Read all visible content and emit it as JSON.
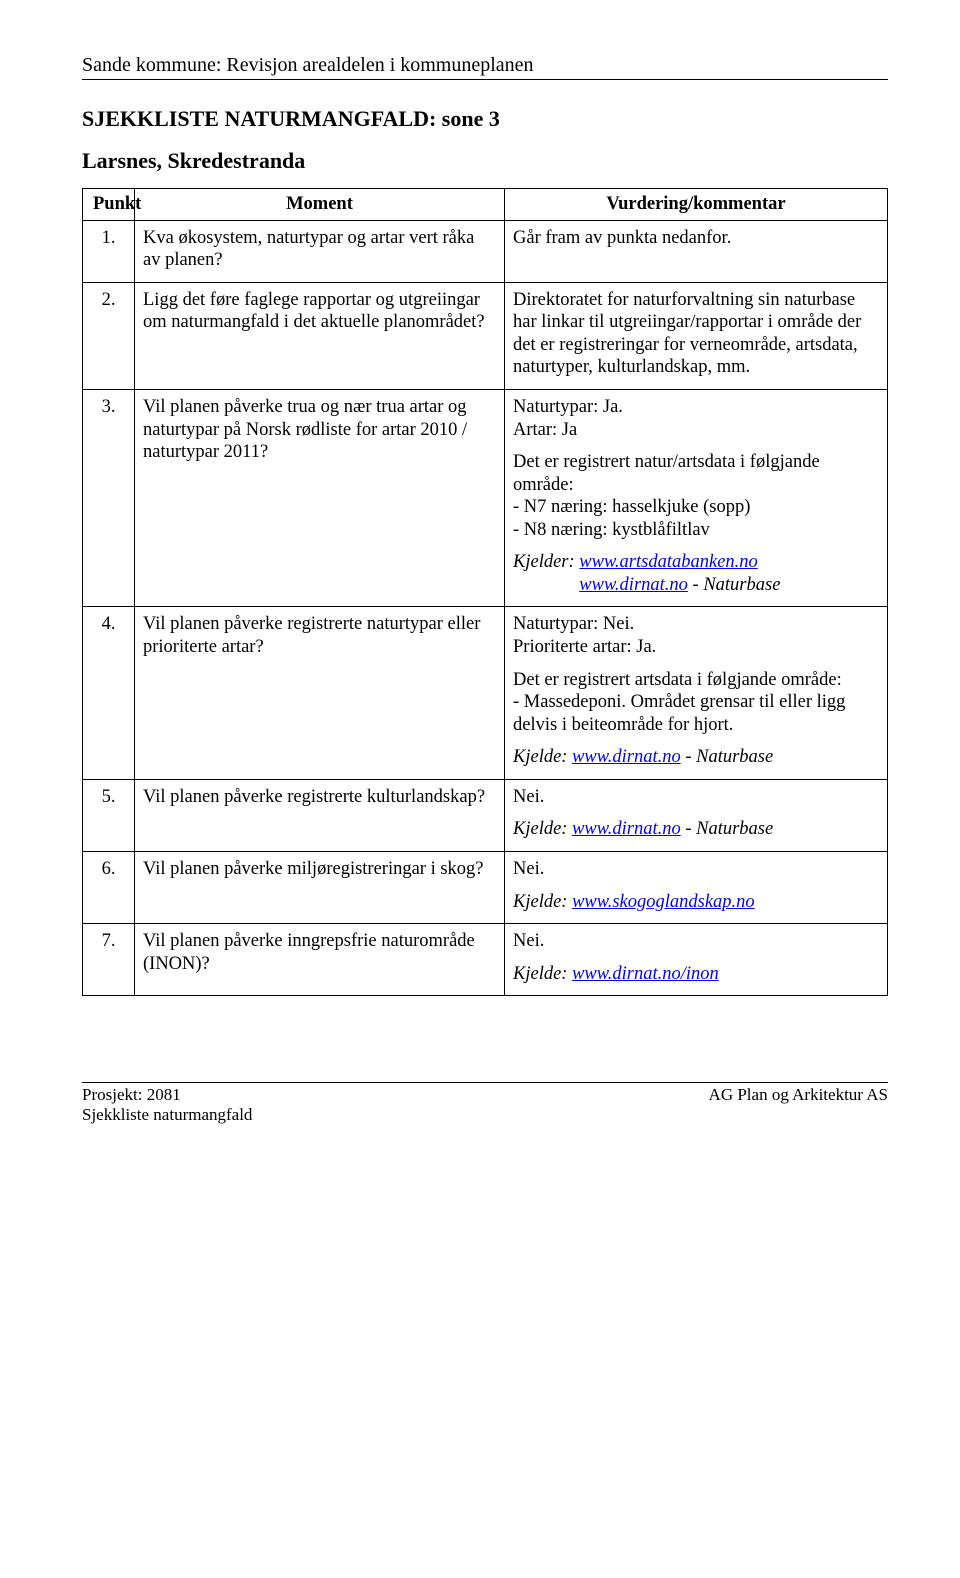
{
  "header": "Sande kommune: Revisjon arealdelen i kommuneplanen",
  "title": "SJEKKLISTE NATURMANGFALD: sone 3",
  "subtitle": "Larsnes, Skredestranda",
  "columns": {
    "c1": "Punkt",
    "c2": "Moment",
    "c3": "Vurdering/kommentar"
  },
  "rows": {
    "r1": {
      "num": "1.",
      "moment": "Kva økosystem, naturtypar og artar vert råka av planen?",
      "vurd": "Går fram av punkta nedanfor."
    },
    "r2": {
      "num": "2.",
      "moment": "Ligg det føre faglege rapportar og utgreiingar om naturmangfald i det aktuelle planområdet?",
      "vurd": "Direktoratet for naturforvaltning sin naturbase har linkar til utgreiingar/rapportar i område der det er registreringar for verneområde, artsdata, naturtyper, kulturlandskap, mm."
    },
    "r3": {
      "num": "3.",
      "moment": "Vil planen påverke trua og nær trua artar og naturtypar på Norsk rødliste for artar 2010 / naturtypar 2011?",
      "vurd_p1a": "Naturtypar: Ja.",
      "vurd_p1b": "Artar: Ja",
      "vurd_p2a": "Det er registrert natur/artsdata i følgjande område:",
      "vurd_p2b": "- N7 næring: hasselkjuke (sopp)",
      "vurd_p2c": "- N8 næring: kystblåfiltlav",
      "kjelder_label": "Kjelder: ",
      "link1": "www.artsdatabanken.no",
      "link2": "www.dirnat.no",
      "suffix2": " - Naturbase"
    },
    "r4": {
      "num": "4.",
      "moment": "Vil planen påverke registrerte naturtypar eller prioriterte artar?",
      "vurd_p1a": "Naturtypar: Nei.",
      "vurd_p1b": "Prioriterte artar: Ja.",
      "vurd_p2a": "Det er registrert artsdata i følgjande område:",
      "vurd_p2b": "- Massedeponi. Området grensar til eller ligg delvis i beiteområde for hjort.",
      "kjelde_label": "Kjelde: ",
      "link": "www.dirnat.no",
      "suffix": " - Naturbase"
    },
    "r5": {
      "num": "5.",
      "moment": "Vil planen påverke registrerte kulturlandskap?",
      "nei": "Nei.",
      "kjelde_label": "Kjelde: ",
      "link": "www.dirnat.no",
      "suffix": " - Naturbase"
    },
    "r6": {
      "num": "6.",
      "moment": "Vil planen påverke miljøregistreringar i skog?",
      "nei": "Nei.",
      "kjelde_label": "Kjelde: ",
      "link": "www.skogoglandskap.no"
    },
    "r7": {
      "num": "7.",
      "moment": "Vil planen påverke inngrepsfrie naturområde (INON)?",
      "nei": "Nei.",
      "kjelde_label": "Kjelde: ",
      "link": "www.dirnat.no/inon"
    }
  },
  "footer": {
    "left1": "Prosjekt: 2081",
    "left2": "Sjekkliste naturmangfald",
    "right": "AG Plan og Arkitektur AS"
  },
  "colors": {
    "text": "#000000",
    "link": "#0000ff",
    "background": "#ffffff",
    "border": "#000000"
  },
  "fonts": {
    "body_family": "Times New Roman",
    "body_size_pt": 14,
    "header_size_pt": 15,
    "title_size_pt": 16
  }
}
